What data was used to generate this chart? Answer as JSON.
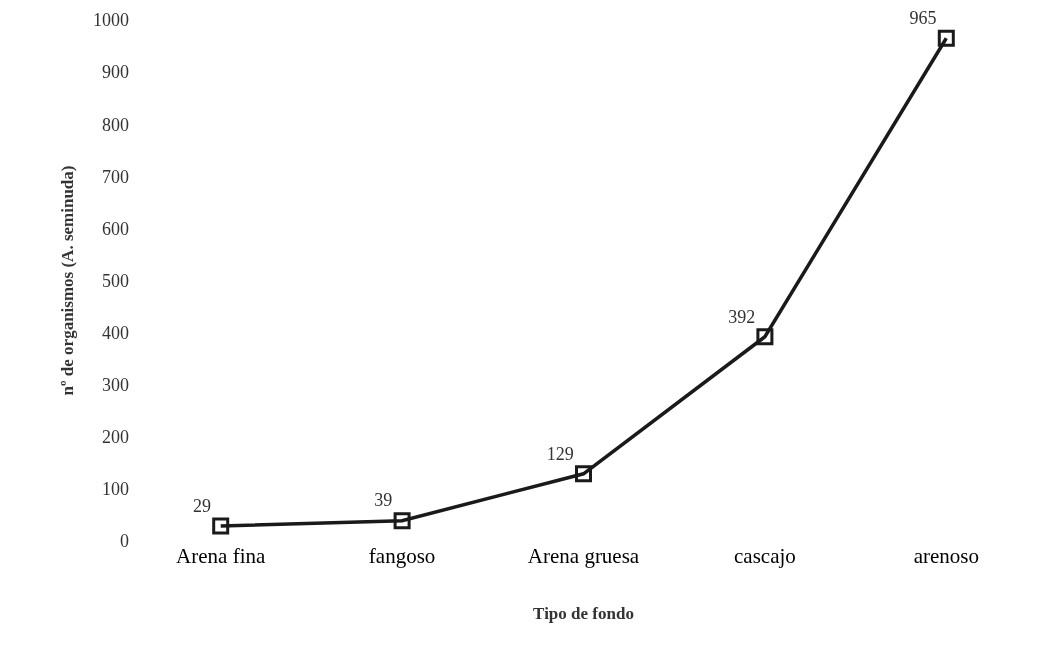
{
  "chart_data": {
    "type": "line",
    "xlabel": "Tipo de fondo",
    "ylabel": "nº de organismos (A. seminuda)",
    "categories": [
      "Arena fina",
      "fangoso",
      "Arena gruesa",
      "cascajo",
      "arenoso"
    ],
    "series": [
      {
        "color": "#1a1a1a",
        "values": [
          29,
          39,
          129,
          392,
          965
        ]
      }
    ],
    "ylim": [
      0,
      1000
    ],
    "yticks": [
      0,
      100,
      200,
      300,
      400,
      500,
      600,
      700,
      800,
      900,
      1000
    ],
    "data_labels": true,
    "marker": "square",
    "line_style": "solid"
  }
}
